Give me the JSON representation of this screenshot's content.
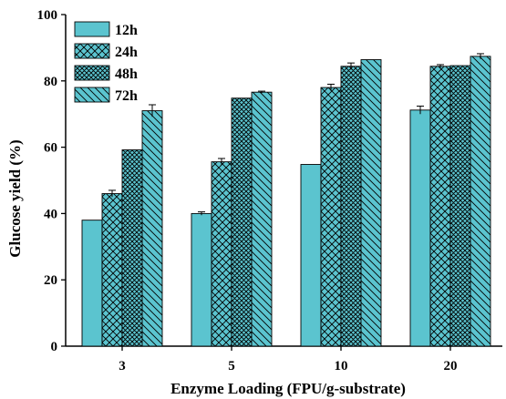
{
  "chart_data": {
    "type": "bar",
    "title": "",
    "xlabel": "Enzyme Loading (FPU/g-substrate)",
    "ylabel": "Glucose yield (%)",
    "categories": [
      "3",
      "5",
      "10",
      "20"
    ],
    "ylim": [
      0,
      100
    ],
    "yticks": [
      "0",
      "20",
      "40",
      "60",
      "80",
      "100"
    ],
    "grid": false,
    "legend_position": "top-left",
    "bar_color": "#5bc4cf",
    "series": [
      {
        "name": "12h",
        "pattern": "solid",
        "values": [
          38.0,
          40.0,
          54.8,
          71.2
        ],
        "errors": [
          0,
          0.5,
          0,
          1.2
        ]
      },
      {
        "name": "24h",
        "pattern": "crosshatch",
        "values": [
          46.0,
          55.6,
          78.0,
          84.4
        ],
        "errors": [
          1.0,
          1.0,
          1.0,
          0.5
        ]
      },
      {
        "name": "48h",
        "pattern": "dense-crosshatch",
        "values": [
          59.2,
          74.8,
          84.4,
          84.6
        ],
        "errors": [
          0,
          0,
          1.0,
          0
        ]
      },
      {
        "name": "72h",
        "pattern": "diagonal",
        "values": [
          71.0,
          76.6,
          86.4,
          87.4
        ],
        "errors": [
          1.8,
          0.3,
          0,
          0.8
        ]
      }
    ]
  }
}
